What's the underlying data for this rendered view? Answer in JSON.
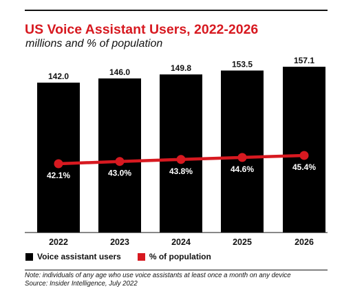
{
  "colors": {
    "bar": "#000000",
    "line": "#d71920",
    "title": "#d71920",
    "text": "#111111"
  },
  "chart_data": {
    "type": "bar",
    "title": "US Voice Assistant Users, 2022-2026",
    "subtitle": "millions and % of population",
    "categories": [
      "2022",
      "2023",
      "2024",
      "2025",
      "2026"
    ],
    "series": [
      {
        "name": "Voice assistant users",
        "type": "bar",
        "values": [
          142.0,
          146.0,
          149.8,
          153.5,
          157.1
        ],
        "labels": [
          "142.0",
          "146.0",
          "149.8",
          "153.5",
          "157.1"
        ]
      },
      {
        "name": "% of population",
        "type": "line",
        "values": [
          42.1,
          43.0,
          43.8,
          44.6,
          45.4
        ],
        "labels": [
          "42.1%",
          "43.0%",
          "43.8%",
          "44.6%",
          "45.4%"
        ]
      }
    ],
    "ylim_bar": [
      0,
      160
    ],
    "ylim_line": [
      0,
      100
    ],
    "grid": false,
    "legend_position": "bottom-left"
  },
  "legend": {
    "bar_label": "Voice assistant users",
    "line_label": "% of population"
  },
  "footer": {
    "note": "Note: individuals of any age who use voice assistants at least once a month on any device",
    "source": "Source: Insider Intelligence, July 2022"
  }
}
